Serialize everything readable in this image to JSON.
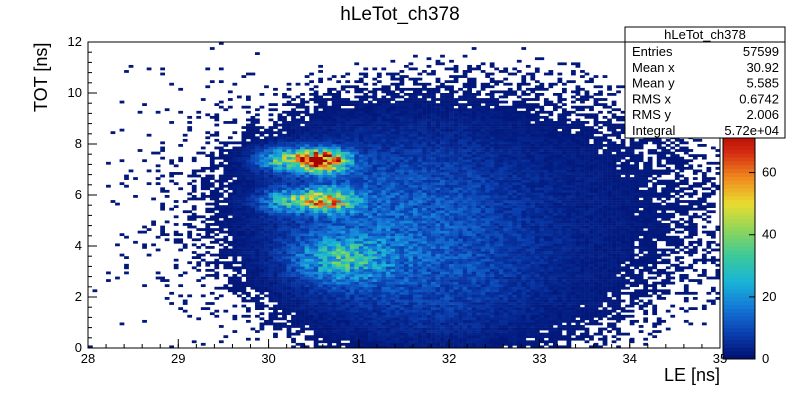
{
  "chart_data": {
    "type": "heatmap",
    "title": "hLeTot_ch378",
    "xlabel": "LE [ns]",
    "ylabel": "TOT [ns]",
    "xlim": [
      28,
      35
    ],
    "ylim": [
      0,
      12
    ],
    "zlim": [
      0,
      75
    ],
    "x_ticks": [
      "28",
      "29",
      "30",
      "31",
      "32",
      "33",
      "34",
      "35"
    ],
    "y_ticks": [
      "0",
      "2",
      "4",
      "6",
      "8",
      "10",
      "12"
    ],
    "z_ticks": [
      "0",
      "20",
      "40",
      "60"
    ],
    "colormap": [
      "#000e6e",
      "#0a3fb0",
      "#1478d8",
      "#19b4d6",
      "#3cc99a",
      "#8fd65a",
      "#e8dc30",
      "#f08a1e",
      "#d42a12",
      "#a50000"
    ],
    "clusters": [
      {
        "x": 30.6,
        "y": 7.35,
        "x_spread": 0.18,
        "y_spread": 0.28,
        "peak": 75
      },
      {
        "x": 30.2,
        "y": 7.4,
        "x_spread": 0.22,
        "y_spread": 0.3,
        "peak": 30
      },
      {
        "x": 30.65,
        "y": 5.8,
        "x_spread": 0.2,
        "y_spread": 0.3,
        "peak": 48
      },
      {
        "x": 30.2,
        "y": 5.8,
        "x_spread": 0.2,
        "y_spread": 0.3,
        "peak": 22
      },
      {
        "x": 30.8,
        "y": 3.5,
        "x_spread": 0.35,
        "y_spread": 0.6,
        "peak": 22
      },
      {
        "x": 31.3,
        "y": 5.5,
        "x_spread": 0.9,
        "y_spread": 2.0,
        "peak": 10
      },
      {
        "x": 31.8,
        "y": 2.5,
        "x_spread": 0.9,
        "y_spread": 1.6,
        "peak": 6
      },
      {
        "x": 32.7,
        "y": 5.5,
        "x_spread": 1.5,
        "y_spread": 3.0,
        "peak": 3
      }
    ],
    "stats": {
      "name": "hLeTot_ch378",
      "rows": [
        {
          "label": "Entries",
          "value": "57599"
        },
        {
          "label": "Mean x",
          "value": "30.92"
        },
        {
          "label": "Mean y",
          "value": "5.585"
        },
        {
          "label": "RMS x",
          "value": "0.6742"
        },
        {
          "label": "RMS y",
          "value": "2.006"
        },
        {
          "label": "Integral",
          "value": "5.72e+04"
        }
      ]
    }
  }
}
